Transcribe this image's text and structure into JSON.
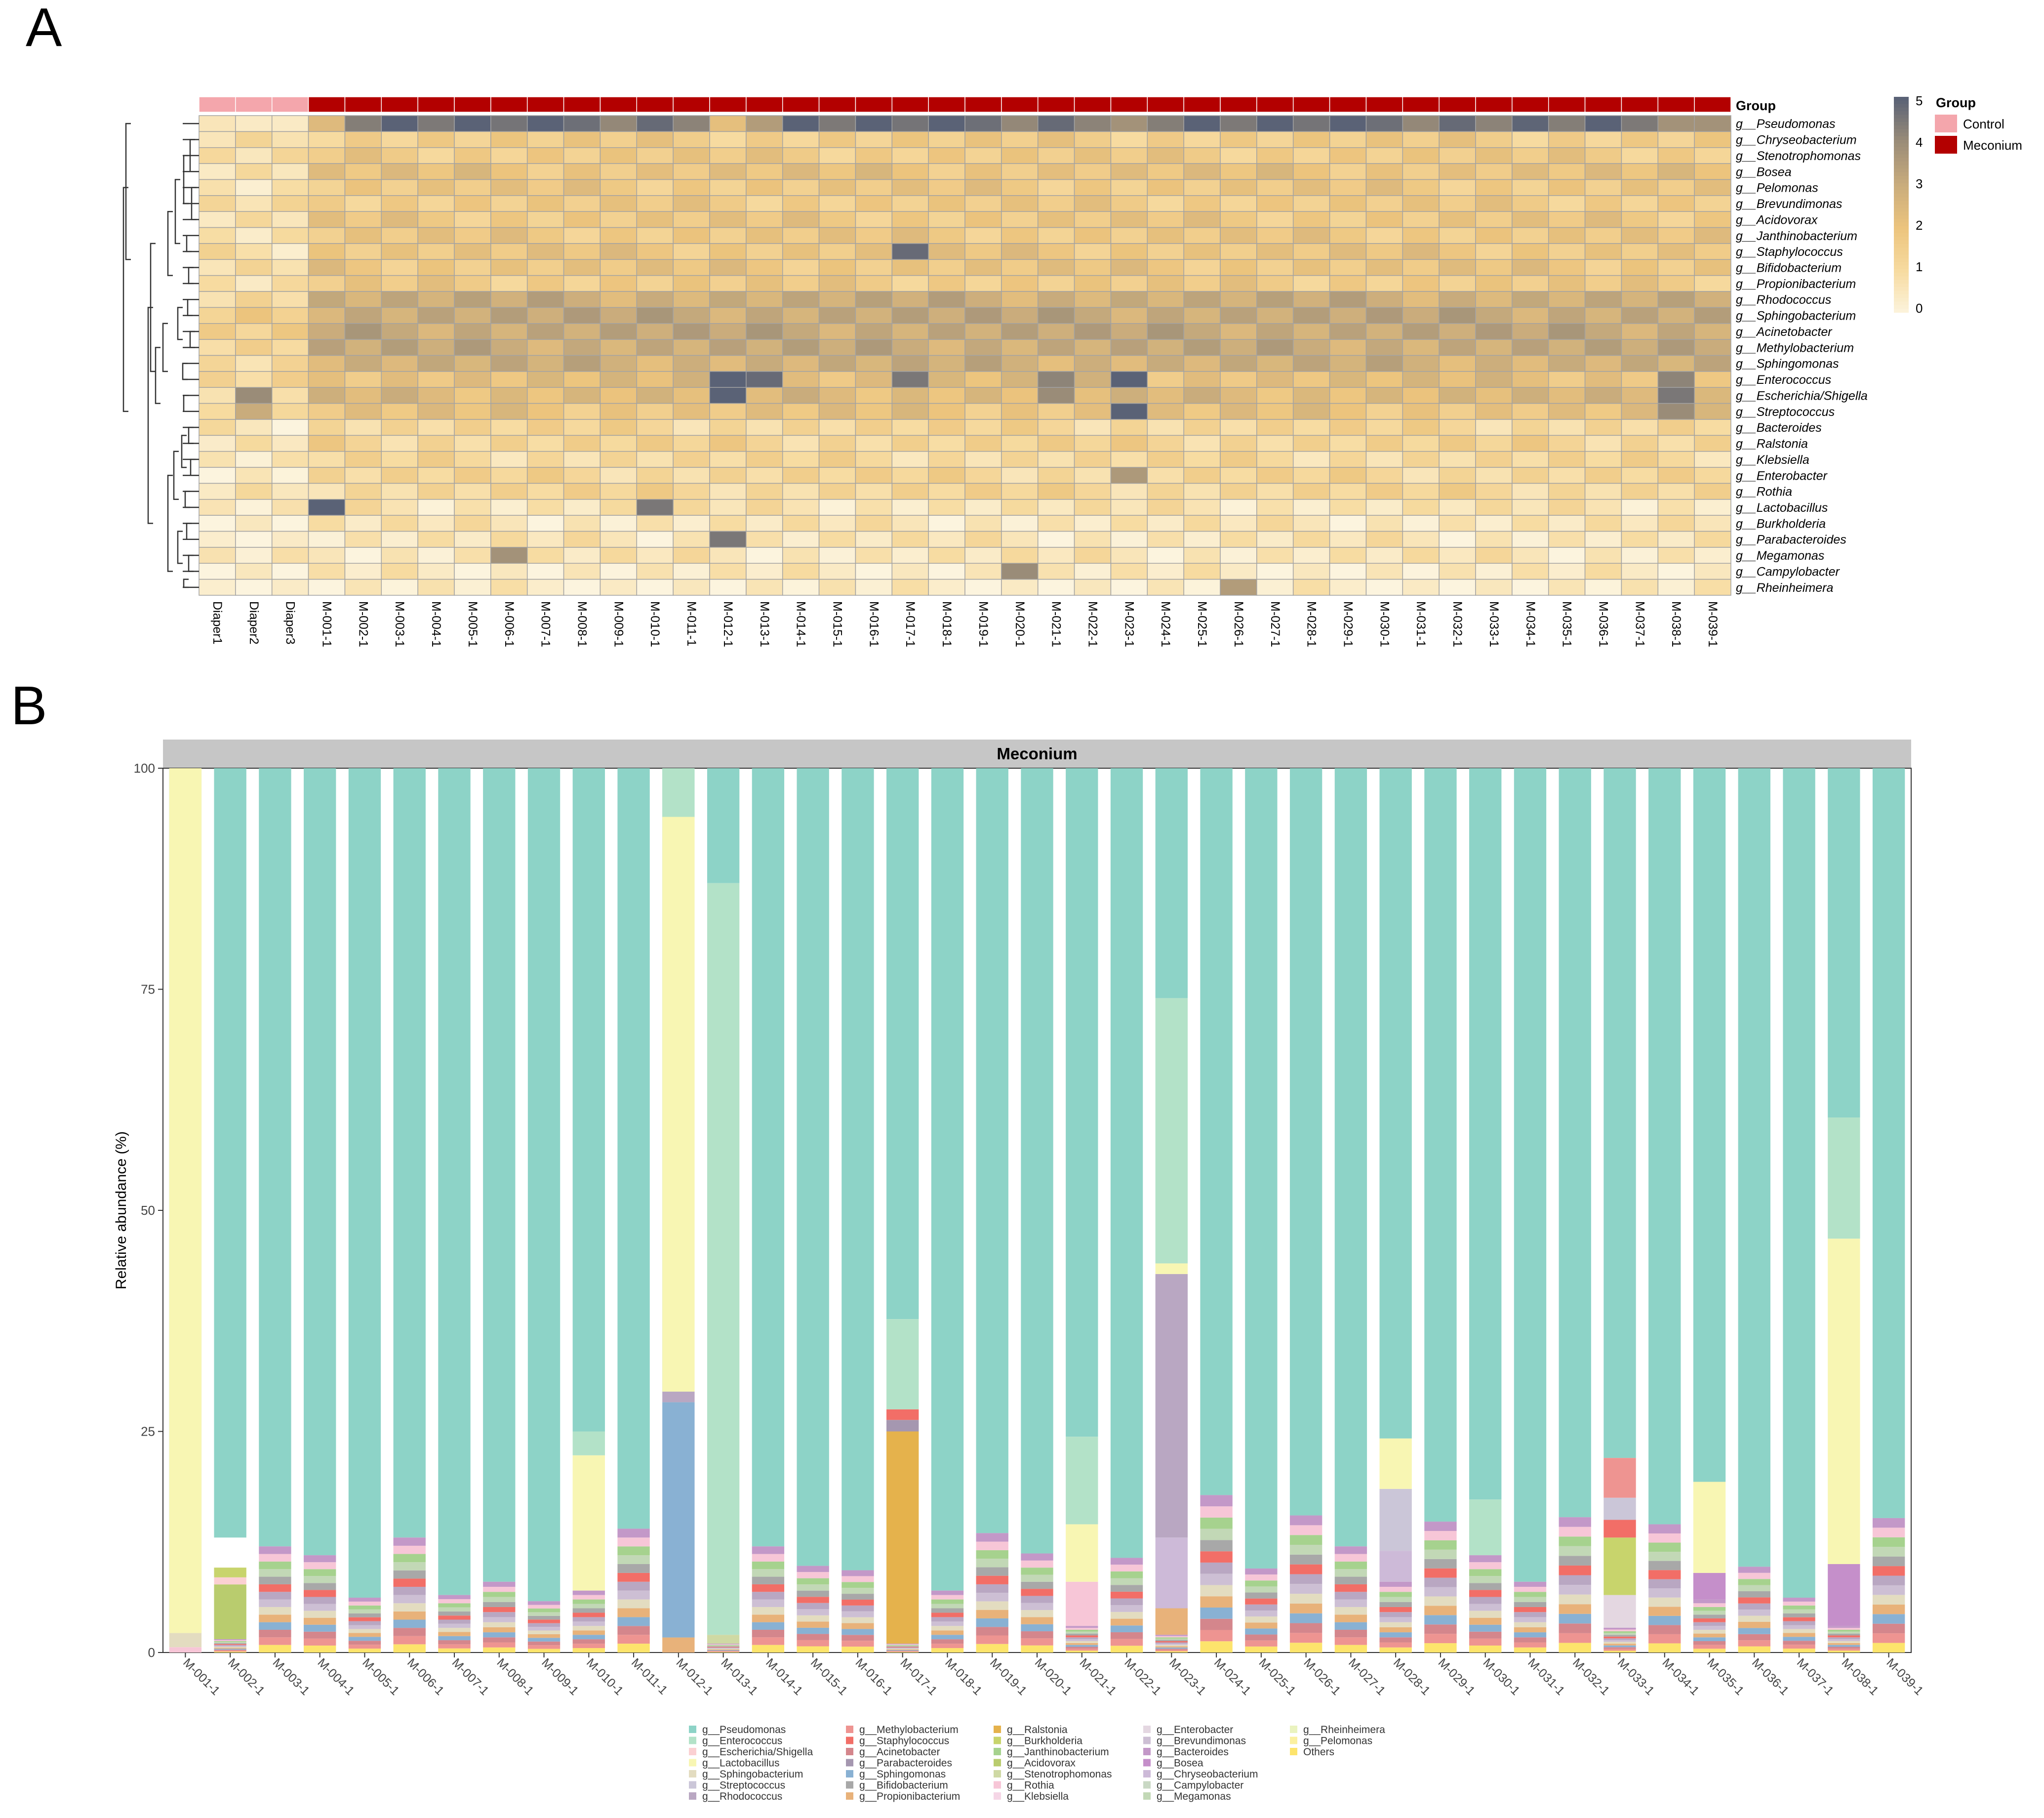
{
  "panels": {
    "a_letter": "A",
    "b_letter": "B"
  },
  "colors": {
    "control": "#f4a6ac",
    "meconium": "#b30000",
    "heat_scale": [
      "#fcf4de",
      "#f7dba0",
      "#ecc47d",
      "#c9ac7c",
      "#9a8c78",
      "#5a6276"
    ]
  },
  "chart_data": [
    {
      "type": "heatmap",
      "panel": "A",
      "columns": [
        "Diaper1",
        "Diaper2",
        "Diaper3",
        "M-001-1",
        "M-002-1",
        "M-003-1",
        "M-004-1",
        "M-005-1",
        "M-006-1",
        "M-007-1",
        "M-008-1",
        "M-009-1",
        "M-010-1",
        "M-011-1",
        "M-012-1",
        "M-013-1",
        "M-014-1",
        "M-015-1",
        "M-016-1",
        "M-017-1",
        "M-018-1",
        "M-019-1",
        "M-020-1",
        "M-021-1",
        "M-022-1",
        "M-023-1",
        "M-024-1",
        "M-025-1",
        "M-026-1",
        "M-027-1",
        "M-028-1",
        "M-029-1",
        "M-030-1",
        "M-031-1",
        "M-032-1",
        "M-033-1",
        "M-034-1",
        "M-035-1",
        "M-036-1",
        "M-037-1",
        "M-038-1",
        "M-039-1"
      ],
      "rows": [
        "g__Pseudomonas",
        "g__Chryseobacterium",
        "g__Stenotrophomonas",
        "g__Bosea",
        "g__Pelomonas",
        "g__Brevundimonas",
        "g__Acidovorax",
        "g__Janthinobacterium",
        "g__Staphylococcus",
        "g__Bifidobacterium",
        "g__Propionibacterium",
        "g__Rhodococcus",
        "g__Sphingobacterium",
        "g__Acinetobacter",
        "g__Methylobacterium",
        "g__Sphingomonas",
        "g__Enterococcus",
        "g__Escherichia/Shigella",
        "g__Streptococcus",
        "g__Bacteroides",
        "g__Ralstonia",
        "g__Klebsiella",
        "g__Enterobacter",
        "g__Rothia",
        "g__Lactobacillus",
        "g__Burkholderia",
        "g__Parabacteroides",
        "g__Megamonas",
        "g__Campylobacter",
        "g__Rheinheimera"
      ],
      "groups": [
        "Control",
        "Control",
        "Control",
        "Meconium",
        "Meconium",
        "Meconium",
        "Meconium",
        "Meconium",
        "Meconium",
        "Meconium",
        "Meconium",
        "Meconium",
        "Meconium",
        "Meconium",
        "Meconium",
        "Meconium",
        "Meconium",
        "Meconium",
        "Meconium",
        "Meconium",
        "Meconium",
        "Meconium",
        "Meconium",
        "Meconium",
        "Meconium",
        "Meconium",
        "Meconium",
        "Meconium",
        "Meconium",
        "Meconium",
        "Meconium",
        "Meconium",
        "Meconium",
        "Meconium",
        "Meconium",
        "Meconium",
        "Meconium",
        "Meconium",
        "Meconium",
        "Meconium",
        "Meconium",
        "Meconium"
      ],
      "annotation_label": "Group",
      "legend_title": "Group",
      "legend_items": [
        "Control",
        "Meconium"
      ],
      "colorbar_ticks": [
        "0",
        "1",
        "2",
        "3",
        "4",
        "5"
      ],
      "range": [
        0,
        5
      ],
      "overrides": [
        [
          8,
          19,
          4.8
        ],
        [
          16,
          14,
          5
        ],
        [
          16,
          15,
          4.8
        ],
        [
          16,
          19,
          4.5
        ],
        [
          16,
          23,
          4.2
        ],
        [
          16,
          25,
          5
        ],
        [
          16,
          40,
          4.2
        ],
        [
          17,
          14,
          5
        ],
        [
          17,
          1,
          4
        ],
        [
          17,
          40,
          4.5
        ],
        [
          17,
          23,
          4
        ],
        [
          18,
          25,
          5
        ],
        [
          18,
          1,
          3
        ],
        [
          18,
          40,
          4
        ],
        [
          24,
          3,
          5
        ],
        [
          24,
          12,
          4.5
        ],
        [
          26,
          14,
          4.5
        ],
        [
          27,
          8,
          3.8
        ],
        [
          28,
          22,
          4
        ],
        [
          29,
          28,
          3.5
        ],
        [
          22,
          25,
          3.6
        ],
        [
          0,
          3,
          2.4
        ],
        [
          0,
          0,
          0.6
        ],
        [
          0,
          1,
          0.4
        ],
        [
          0,
          2,
          0.4
        ],
        [
          0,
          14,
          2.2
        ],
        [
          0,
          15,
          3.5
        ],
        [
          0,
          25,
          3.8
        ],
        [
          0,
          40,
          3.8
        ],
        [
          0,
          41,
          3.8
        ]
      ]
    },
    {
      "type": "bar",
      "panel": "B",
      "stacked": true,
      "facet_label": "Meconium",
      "ylabel": "Relative abundance (%)",
      "xlabel": "",
      "ylim": [
        0,
        100
      ],
      "yticks": [
        "0",
        "25",
        "50",
        "75",
        "100"
      ],
      "categories": [
        "M-001-1",
        "M-002-1",
        "M-003-1",
        "M-004-1",
        "M-005-1",
        "M-006-1",
        "M-007-1",
        "M-008-1",
        "M-009-1",
        "M-010-1",
        "M-011-1",
        "M-012-1",
        "M-013-1",
        "M-014-1",
        "M-015-1",
        "M-016-1",
        "M-017-1",
        "M-018-1",
        "M-019-1",
        "M-020-1",
        "M-021-1",
        "M-022-1",
        "M-023-1",
        "M-024-1",
        "M-025-1",
        "M-026-1",
        "M-027-1",
        "M-028-1",
        "M-029-1",
        "M-030-1",
        "M-031-1",
        "M-032-1",
        "M-033-1",
        "M-034-1",
        "M-035-1",
        "M-036-1",
        "M-037-1",
        "M-038-1",
        "M-039-1"
      ],
      "pseudomonas_start": [
        2.2,
        13,
        12,
        11,
        6.2,
        13,
        6.5,
        8,
        5.8,
        25,
        14,
        29.5,
        87,
        12,
        9.8,
        9.3,
        37.7,
        7,
        13.5,
        11.2,
        24.4,
        10.7,
        74,
        17.8,
        9.5,
        15.5,
        12,
        24.2,
        14.8,
        17.3,
        8,
        15.3,
        22,
        14.5,
        19.3,
        9.7,
        6.2,
        60.5,
        15.2
      ],
      "extras": [
        [
          [
            0,
            0.6,
            19
          ],
          [
            0.6,
            2.2,
            4
          ],
          [
            2.2,
            100,
            3
          ]
        ],
        [
          [
            1.5,
            7.7,
            17
          ],
          [
            7.7,
            8.5,
            2
          ],
          [
            8.5,
            9.6,
            15
          ]
        ],
        [],
        [],
        [],
        [],
        [],
        [],
        [],
        [
          [
            7,
            22.3,
            3
          ],
          [
            22.3,
            25,
            1
          ]
        ],
        [],
        [
          [
            0,
            1.7,
            13
          ],
          [
            1.7,
            28.3,
            11
          ],
          [
            28.3,
            29.5,
            6
          ],
          [
            29.5,
            94.5,
            3
          ],
          [
            94.5,
            100,
            1
          ]
        ],
        [
          [
            1,
            2,
            18
          ],
          [
            2,
            87,
            1
          ]
        ],
        [],
        [],
        [],
        [
          [
            1,
            25,
            14
          ],
          [
            25,
            26.3,
            10
          ],
          [
            26.3,
            27.5,
            8
          ],
          [
            27.5,
            37.7,
            1
          ]
        ],
        [],
        [],
        [],
        [
          [
            3,
            8,
            19
          ],
          [
            8,
            14.5,
            3
          ],
          [
            14.5,
            24.4,
            1
          ]
        ],
        [],
        [
          [
            2,
            5,
            13
          ],
          [
            5,
            13,
            25
          ],
          [
            13,
            42.8,
            6
          ],
          [
            42.8,
            44,
            3
          ],
          [
            44,
            74,
            1
          ]
        ],
        [],
        [],
        [],
        [],
        [
          [
            8,
            11.5,
            25
          ],
          [
            11.5,
            18.5,
            5
          ],
          [
            18.5,
            24.2,
            3
          ]
        ],
        [],
        [
          [
            11,
            17.3,
            1
          ]
        ],
        [],
        [],
        [
          [
            2.8,
            6.5,
            21
          ],
          [
            6.5,
            13,
            15
          ],
          [
            13,
            15,
            8
          ],
          [
            15,
            17.5,
            5
          ],
          [
            17.5,
            22,
            7
          ]
        ],
        [],
        [
          [
            6,
            9,
            24
          ],
          [
            9,
            19.3,
            3
          ]
        ],
        [],
        [],
        [
          [
            3,
            10,
            24
          ],
          [
            10,
            46.8,
            3
          ],
          [
            46.8,
            60.5,
            1
          ]
        ],
        []
      ],
      "legend": {
        "labels": [
          "g__Pseudomonas",
          "g__Enterococcus",
          "g__Escherichia/Shigella",
          "g__Lactobacillus",
          "g__Sphingobacterium",
          "g__Streptococcus",
          "g__Rhodococcus",
          "g__Methylobacterium",
          "g__Staphylococcus",
          "g__Acinetobacter",
          "g__Parabacteroides",
          "g__Sphingomonas",
          "g__Bifidobacterium",
          "g__Propionibacterium",
          "g__Ralstonia",
          "g__Burkholderia",
          "g__Janthinobacterium",
          "g__Acidovorax",
          "g__Stenotrophomonas",
          "g__Rothia",
          "g__Klebsiella",
          "g__Enterobacter",
          "g__Brevundimonas",
          "g__Bacteroides",
          "g__Bosea",
          "g__Chryseobacterium",
          "g__Campylobacter",
          "g__Megamonas",
          "g__Rheinheimera",
          "g__Pelomonas",
          "Others"
        ],
        "colors": [
          "#8dd3c7",
          "#b3e2c8",
          "#fbd0d2",
          "#f8f6b3",
          "#e3dcc0",
          "#cbc6d8",
          "#b9a7c2",
          "#ee9491",
          "#f26e67",
          "#d4868c",
          "#a597b0",
          "#89b1d3",
          "#a8a8a8",
          "#e8b27a",
          "#e5b24c",
          "#c8d46c",
          "#a6d28e",
          "#b9cc6e",
          "#cfd9a4",
          "#f7c6d7",
          "#f5d6e6",
          "#e4d7e1",
          "#cdbfd4",
          "#c398c8",
          "#c58fca",
          "#cdbad8",
          "#c9d8c4",
          "#c2d8b6",
          "#eaf3bf",
          "#fbf0a0",
          "#fde46c"
        ]
      }
    }
  ]
}
